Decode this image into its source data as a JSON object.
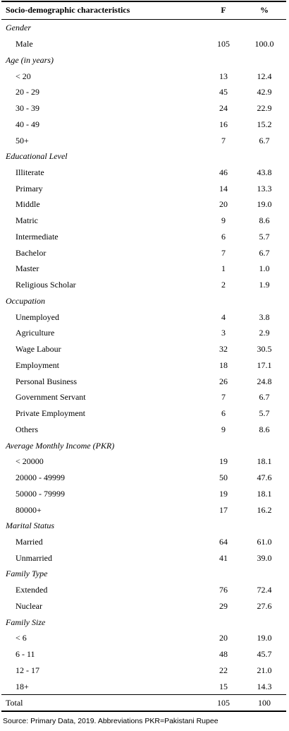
{
  "header": [
    "Socio-demographic characteristics",
    "F",
    "%"
  ],
  "sections": [
    {
      "title": "Gender",
      "rows": [
        [
          "Male",
          "105",
          "100.0"
        ]
      ]
    },
    {
      "title": "Age (in years)",
      "rows": [
        [
          "< 20",
          "13",
          "12.4"
        ],
        [
          "20 - 29",
          "45",
          "42.9"
        ],
        [
          "30 - 39",
          "24",
          "22.9"
        ],
        [
          "40 - 49",
          "16",
          "15.2"
        ],
        [
          "50+",
          "7",
          "6.7"
        ]
      ]
    },
    {
      "title": "Educational Level",
      "rows": [
        [
          "Illiterate",
          "46",
          "43.8"
        ],
        [
          "Primary",
          "14",
          "13.3"
        ],
        [
          "Middle",
          "20",
          "19.0"
        ],
        [
          "Matric",
          "9",
          "8.6"
        ],
        [
          "Intermediate",
          "6",
          "5.7"
        ],
        [
          "Bachelor",
          "7",
          "6.7"
        ],
        [
          "Master",
          "1",
          "1.0"
        ],
        [
          "Religious Scholar",
          "2",
          "1.9"
        ]
      ]
    },
    {
      "title": "Occupation",
      "rows": [
        [
          "Unemployed",
          "4",
          "3.8"
        ],
        [
          "Agriculture",
          "3",
          "2.9"
        ],
        [
          "Wage Labour",
          "32",
          "30.5"
        ],
        [
          "Employment",
          "18",
          "17.1"
        ],
        [
          "Personal Business",
          "26",
          "24.8"
        ],
        [
          "Government Servant",
          "7",
          "6.7"
        ],
        [
          "Private Employment",
          "6",
          "5.7"
        ],
        [
          "Others",
          "9",
          "8.6"
        ]
      ]
    },
    {
      "title": "Average Monthly Income (PKR)",
      "rows": [
        [
          "< 20000",
          "19",
          "18.1"
        ],
        [
          "20000 - 49999",
          "50",
          "47.6"
        ],
        [
          "50000 - 79999",
          "19",
          "18.1"
        ],
        [
          "80000+",
          "17",
          "16.2"
        ]
      ]
    },
    {
      "title": "Marital Status",
      "rows": [
        [
          "Married",
          "64",
          "61.0"
        ],
        [
          "Unmarried",
          "41",
          "39.0"
        ]
      ]
    },
    {
      "title": "Family Type",
      "rows": [
        [
          "Extended",
          "76",
          "72.4"
        ],
        [
          "Nuclear",
          "29",
          "27.6"
        ]
      ]
    },
    {
      "title": "Family Size",
      "rows": [
        [
          "< 6",
          "20",
          "19.0"
        ],
        [
          "6 - 11",
          "48",
          "45.7"
        ],
        [
          "12 - 17",
          "22",
          "21.0"
        ],
        [
          "18+",
          "15",
          "14.3"
        ]
      ]
    }
  ],
  "total": [
    "Total",
    "105",
    "100"
  ],
  "footer": "Source: Primary Data, 2019. Abbreviations PKR=Pakistani Rupee"
}
